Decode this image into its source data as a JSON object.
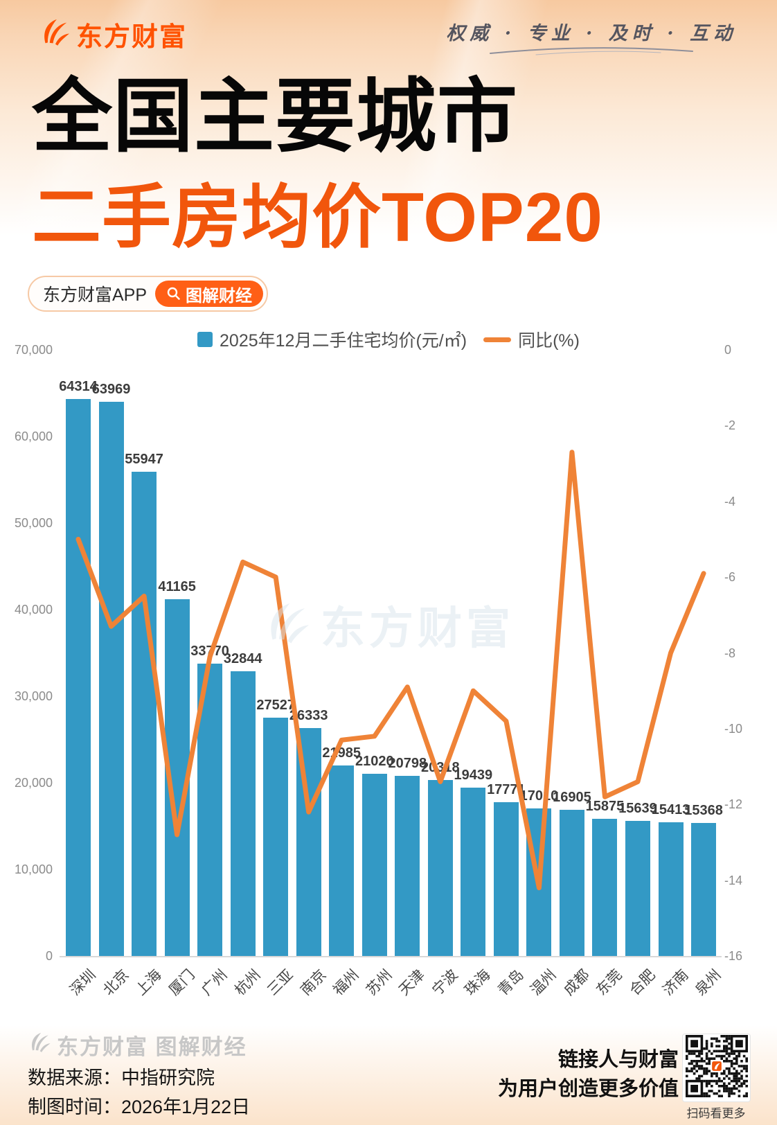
{
  "header": {
    "logo_text": "东方财富",
    "slogan": "权威 · 专业 · 及时 · 互动"
  },
  "title": {
    "line1": "全国主要城市",
    "line2": "二手房均价TOP20"
  },
  "badge": {
    "app_label": "东方财富APP",
    "tag_label": "图解财经"
  },
  "chart_data": {
    "type": "bar+line",
    "categories": [
      "深圳",
      "北京",
      "上海",
      "厦门",
      "广州",
      "杭州",
      "三亚",
      "南京",
      "福州",
      "苏州",
      "天津",
      "宁波",
      "珠海",
      "青岛",
      "温州",
      "成都",
      "东莞",
      "合肥",
      "济南",
      "泉州"
    ],
    "series": [
      {
        "name": "2025年12月二手住宅均价(元/㎡)",
        "type": "bar",
        "axis": "left",
        "color": "#3399c5",
        "values": [
          64314,
          63969,
          55947,
          41165,
          33770,
          32844,
          27527,
          26333,
          21985,
          21020,
          20798,
          20318,
          19439,
          17771,
          17010,
          16905,
          15875,
          15639,
          15413,
          15368
        ]
      },
      {
        "name": "同比(%)",
        "type": "line",
        "axis": "right",
        "color": "#ef8337",
        "values": [
          -5.0,
          -7.3,
          -6.5,
          -12.8,
          -8.1,
          -5.6,
          -6.0,
          -12.2,
          -10.3,
          -10.2,
          -8.9,
          -11.4,
          -9.0,
          -9.8,
          -14.2,
          -2.7,
          -11.8,
          -11.4,
          -8.0,
          -5.9
        ]
      }
    ],
    "left_axis": {
      "min": 0,
      "max": 70000,
      "tick_labels": [
        "70,000",
        "60,000",
        "50,000",
        "40,000",
        "30,000",
        "20,000",
        "10,000",
        "0"
      ]
    },
    "right_axis": {
      "min": -16,
      "max": 0,
      "tick_labels": [
        "0",
        "-2",
        "-4",
        "-6",
        "-8",
        "-10",
        "-12",
        "-14",
        "-16"
      ]
    },
    "legend_position": "top",
    "grid": false,
    "bar_labels_shown": true
  },
  "watermark": {
    "text": "东方财富"
  },
  "footer": {
    "watermark_logo": "东方财富 图解财经",
    "source": "数据来源：中指研究院",
    "date": "制图时间：2026年1月22日",
    "slogan_line1": "链接人与财富",
    "slogan_line2": "为用户创造更多价值",
    "qr_caption": "扫码看更多"
  },
  "colors": {
    "brand_orange": "#ff5200",
    "title_orange": "#f1560c",
    "pill_orange": "#ff5f16",
    "bar_blue": "#3399c5",
    "line_orange": "#ef8337"
  }
}
